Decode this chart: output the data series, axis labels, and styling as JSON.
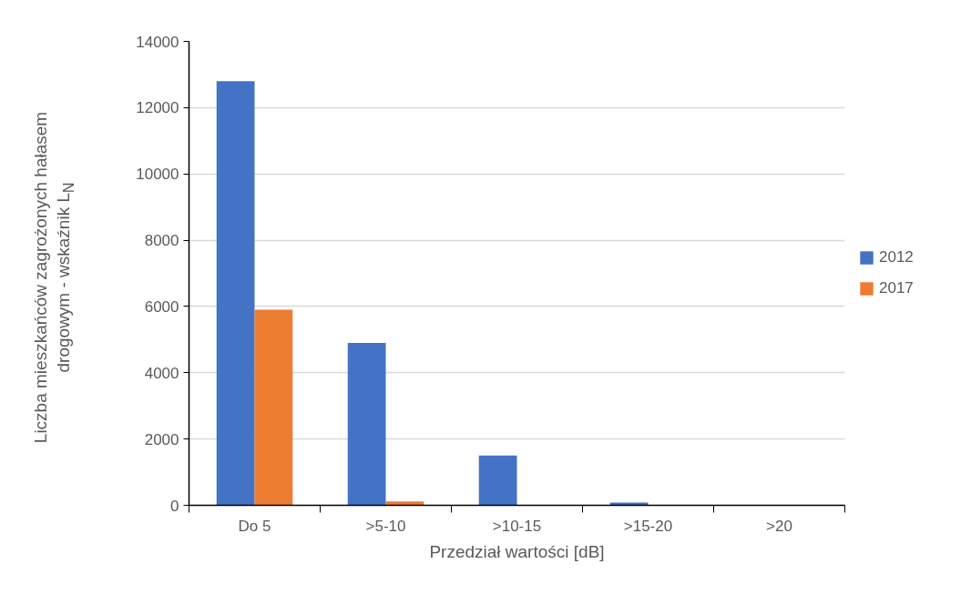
{
  "chart_data": {
    "type": "bar",
    "xlabel": "Przedział wartości [dB]",
    "ylabel": "Liczba mieszkańców zagrożonych hałasem drogowym - wskaźnik L$_{N}$",
    "categories": [
      "Do 5",
      ">5-10",
      ">10-15",
      ">15-20",
      ">20"
    ],
    "series": [
      {
        "name": "2012",
        "color": "#4472c4",
        "values": [
          12800,
          4900,
          1500,
          80,
          0
        ]
      },
      {
        "name": "2017",
        "color": "#ed7d31",
        "values": [
          5900,
          120,
          0,
          0,
          0
        ]
      }
    ],
    "ylim": [
      0,
      14000
    ],
    "yticks": [
      0,
      2000,
      4000,
      6000,
      8000,
      10000,
      12000,
      14000
    ],
    "grid": "y",
    "legend": "right"
  }
}
